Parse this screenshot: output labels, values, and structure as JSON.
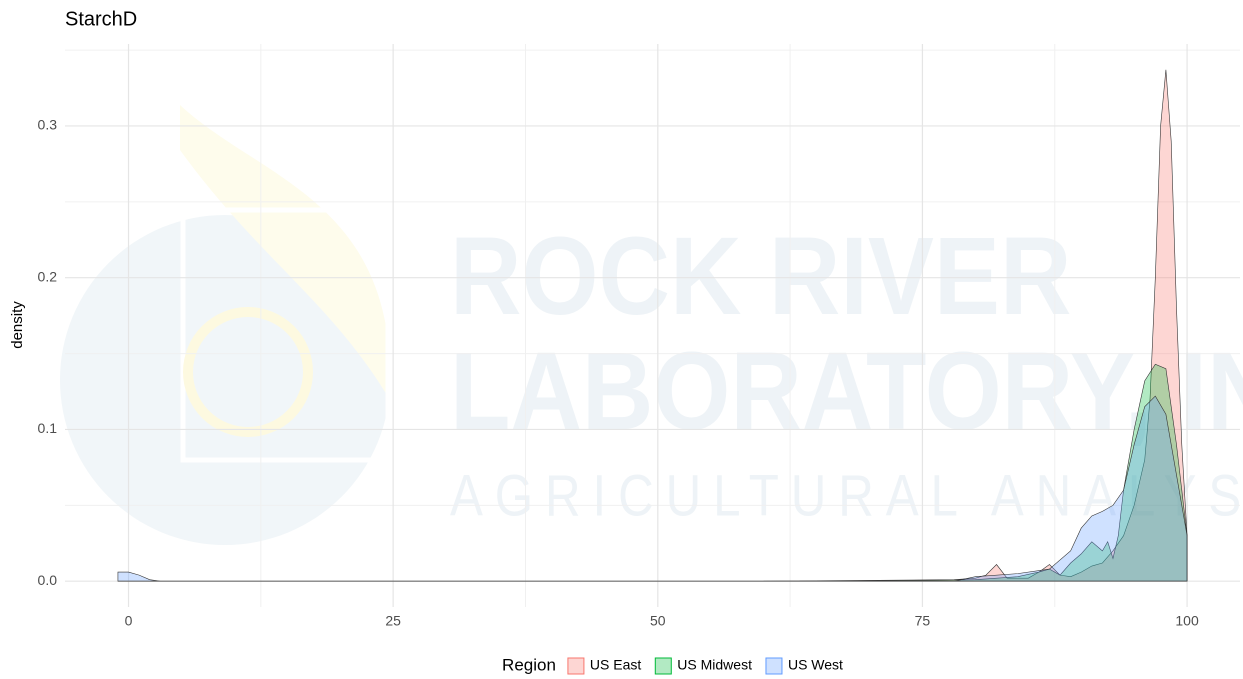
{
  "chart_data": {
    "type": "density",
    "title": "StarchD",
    "ylabel": "density",
    "watermark": {
      "line1": "ROCK RIVER",
      "line2": "LABORATORY, INC.",
      "line3": "AGRICULTURAL ANALYSIS"
    },
    "legend_title": "Region",
    "legend_position": "bottom",
    "grid": true,
    "xlim": [
      -6,
      105
    ],
    "ylim": [
      -0.017,
      0.354
    ],
    "xticks": [
      0,
      25,
      50,
      75,
      100
    ],
    "xminor": [
      12.5,
      37.5,
      62.5,
      87.5
    ],
    "yticks": [
      {
        "value": 0,
        "label": "0.0"
      },
      0.1,
      0.2,
      0.3
    ],
    "yminor": [
      0.05,
      0.15,
      0.25,
      0.35
    ],
    "fill_opacity": 0.3,
    "series": [
      {
        "name": "US East",
        "color": "#F8766D",
        "x": [
          60,
          78,
          80,
          81,
          82,
          83,
          85,
          86,
          87,
          88,
          89,
          90,
          91,
          92,
          93,
          94,
          95,
          96,
          96.5,
          97,
          97.5,
          98,
          98.5,
          99,
          99.5,
          100
        ],
        "values": [
          0,
          0.001,
          0.002,
          0.004,
          0.011,
          0.002,
          0.002,
          0.006,
          0.011,
          0.004,
          0.003,
          0.006,
          0.01,
          0.012,
          0.02,
          0.03,
          0.05,
          0.08,
          0.12,
          0.2,
          0.3,
          0.337,
          0.29,
          0.18,
          0.09,
          0.03
        ]
      },
      {
        "name": "US Midwest",
        "color": "#00BA38",
        "x": [
          65,
          80,
          84,
          86,
          87,
          88,
          89,
          90,
          91,
          92,
          92.5,
          93,
          93.5,
          94,
          95,
          96,
          97,
          98,
          99,
          100
        ],
        "values": [
          0,
          0.001,
          0.003,
          0.006,
          0.008,
          0.004,
          0.012,
          0.018,
          0.026,
          0.02,
          0.026,
          0.015,
          0.03,
          0.06,
          0.1,
          0.132,
          0.143,
          0.14,
          0.09,
          0.03
        ]
      },
      {
        "name": "US West",
        "color": "#619CFF",
        "x": [
          -1,
          0,
          1,
          2,
          3,
          78,
          80,
          84,
          87,
          89,
          90,
          91,
          92,
          93,
          94,
          95,
          96,
          97,
          98,
          99,
          100
        ],
        "values": [
          0.006,
          0.006,
          0.004,
          0.001,
          0,
          0,
          0.003,
          0.005,
          0.008,
          0.02,
          0.035,
          0.043,
          0.046,
          0.05,
          0.06,
          0.09,
          0.115,
          0.122,
          0.11,
          0.07,
          0.03
        ]
      }
    ]
  }
}
